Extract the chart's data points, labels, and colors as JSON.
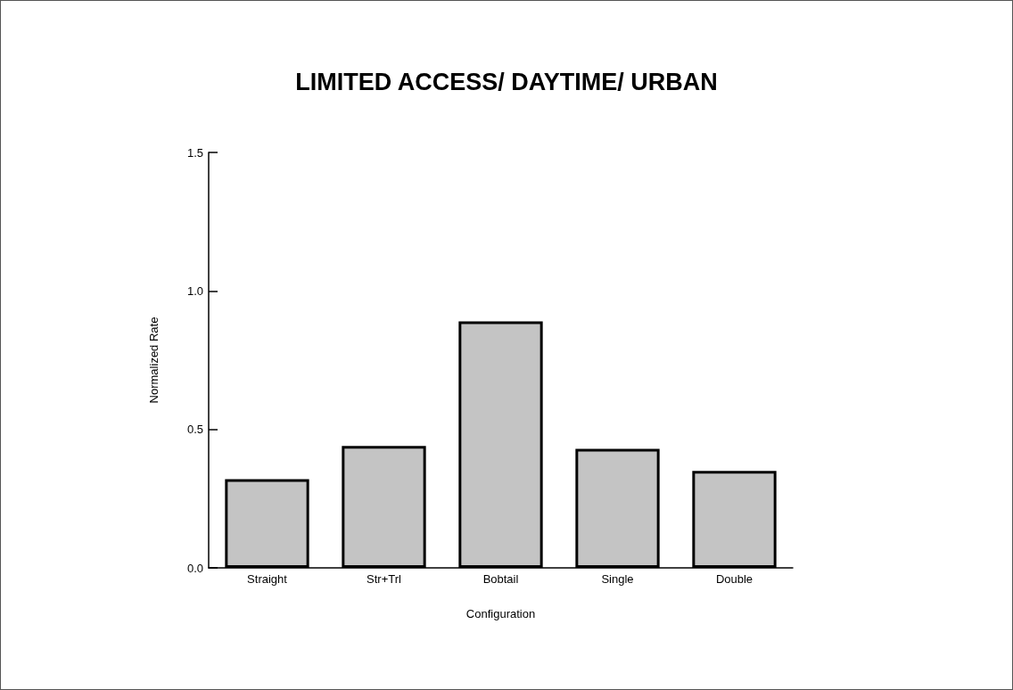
{
  "chart_data": {
    "type": "bar",
    "title": "LIMITED ACCESS/ DAYTIME/ URBAN",
    "xlabel": "Configuration",
    "ylabel": "Normalized Rate",
    "categories": [
      "Straight",
      "Str+Trl",
      "Bobtail",
      "Single",
      "Double"
    ],
    "values": [
      0.32,
      0.44,
      0.89,
      0.43,
      0.35
    ],
    "color": "#c4c4c4",
    "ylim": [
      0,
      1.5
    ],
    "yticks": [
      {
        "value": 0,
        "label": "0.0"
      },
      {
        "value": 0.5,
        "label": "0.5"
      },
      {
        "value": 1,
        "label": "1.0"
      },
      {
        "value": 1.5,
        "label": "1.5"
      }
    ],
    "grid": false
  }
}
